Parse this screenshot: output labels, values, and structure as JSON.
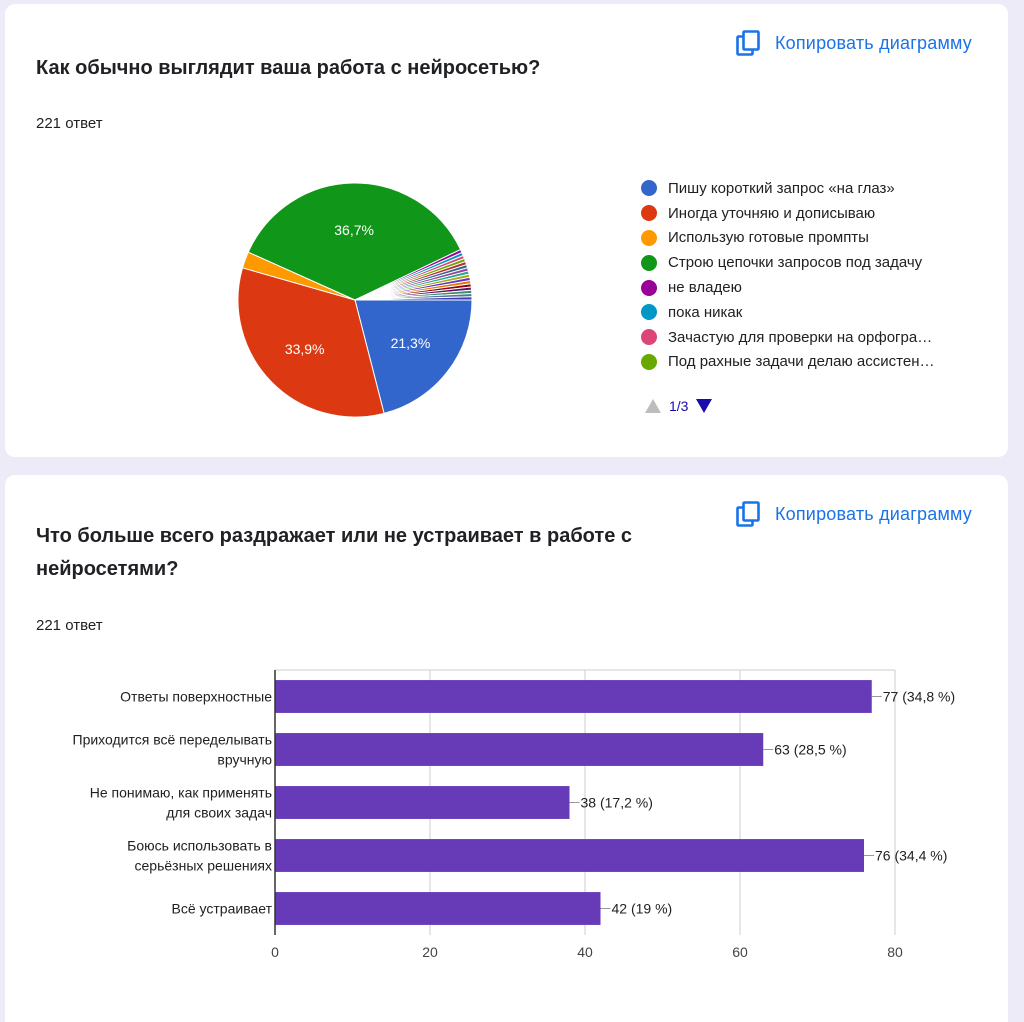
{
  "charts": [
    {
      "copy_label": "Копировать диаграмму",
      "title": "Как обычно выглядит ваша работа с нейросетью?",
      "responses": "221 ответ",
      "pager": "1/3"
    },
    {
      "copy_label": "Копировать диаграмму",
      "title": "Что больше всего раздражает или не устраивает в работе с нейросетями?",
      "responses": "221 ответ"
    }
  ],
  "chart_data": [
    {
      "type": "pie",
      "title": "Как обычно выглядит ваша работа с нейросетью?",
      "slices": [
        {
          "label": "Пишу короткий запрос «на глаз»",
          "value": 21.3,
          "display": "21,3%",
          "color": "#3366cc"
        },
        {
          "label": "Иногда уточняю и дописываю",
          "value": 33.9,
          "display": "33,9%",
          "color": "#dc3912"
        },
        {
          "label": "Использую готовые промпты",
          "value": 2.3,
          "display": "",
          "color": "#ff9900"
        },
        {
          "label": "Строю цепочки запросов под задачу",
          "value": 36.7,
          "display": "36,7%",
          "color": "#109618"
        },
        {
          "label": "не владею",
          "value": 0.45,
          "display": "",
          "color": "#990099"
        },
        {
          "label": "пока никак",
          "value": 0.45,
          "display": "",
          "color": "#0099c6"
        },
        {
          "label": "Зачастую для проверки на орфогра…",
          "value": 0.45,
          "display": "",
          "color": "#dd4477"
        },
        {
          "label": "Под рахные задачи делаю ассистен…",
          "value": 0.45,
          "display": "",
          "color": "#66aa00"
        },
        {
          "label": "",
          "value": 0.45,
          "display": "",
          "color": "#b82e2e"
        },
        {
          "label": "",
          "value": 0.45,
          "display": "",
          "color": "#316395"
        },
        {
          "label": "",
          "value": 0.45,
          "display": "",
          "color": "#994499"
        },
        {
          "label": "",
          "value": 0.45,
          "display": "",
          "color": "#22aa99"
        },
        {
          "label": "",
          "value": 0.45,
          "display": "",
          "color": "#aaaa11"
        },
        {
          "label": "",
          "value": 0.45,
          "display": "",
          "color": "#6633cc"
        },
        {
          "label": "",
          "value": 0.45,
          "display": "",
          "color": "#e67300"
        },
        {
          "label": "",
          "value": 0.45,
          "display": "",
          "color": "#8b0707"
        },
        {
          "label": "",
          "value": 0.45,
          "display": "",
          "color": "#651067"
        },
        {
          "label": "",
          "value": 0.45,
          "display": "",
          "color": "#329262"
        },
        {
          "label": "",
          "value": 0.45,
          "display": "",
          "color": "#5574a6"
        },
        {
          "label": "",
          "value": 0.45,
          "display": "",
          "color": "#3b3eac"
        }
      ]
    },
    {
      "type": "bar",
      "orientation": "horizontal",
      "title": "Что больше всего раздражает или не устраивает в работе с нейросетями?",
      "categories": [
        [
          "Ответы поверхностные"
        ],
        [
          "Приходится всё переделывать",
          "вручную"
        ],
        [
          "Не понимаю, как применять",
          "для своих задач"
        ],
        [
          "Боюсь использовать в",
          "серьёзных решениях"
        ],
        [
          "Всё устраивает"
        ]
      ],
      "values": [
        77,
        63,
        38,
        76,
        42
      ],
      "value_labels": [
        "77 (34,8 %)",
        "63 (28,5 %)",
        "38 (17,2 %)",
        "76 (34,4 %)",
        "42 (19 %)"
      ],
      "xlim": [
        0,
        80
      ],
      "xticks": [
        "0",
        "20",
        "40",
        "60",
        "80"
      ],
      "bar_color": "#673ab7",
      "grid": true
    }
  ]
}
